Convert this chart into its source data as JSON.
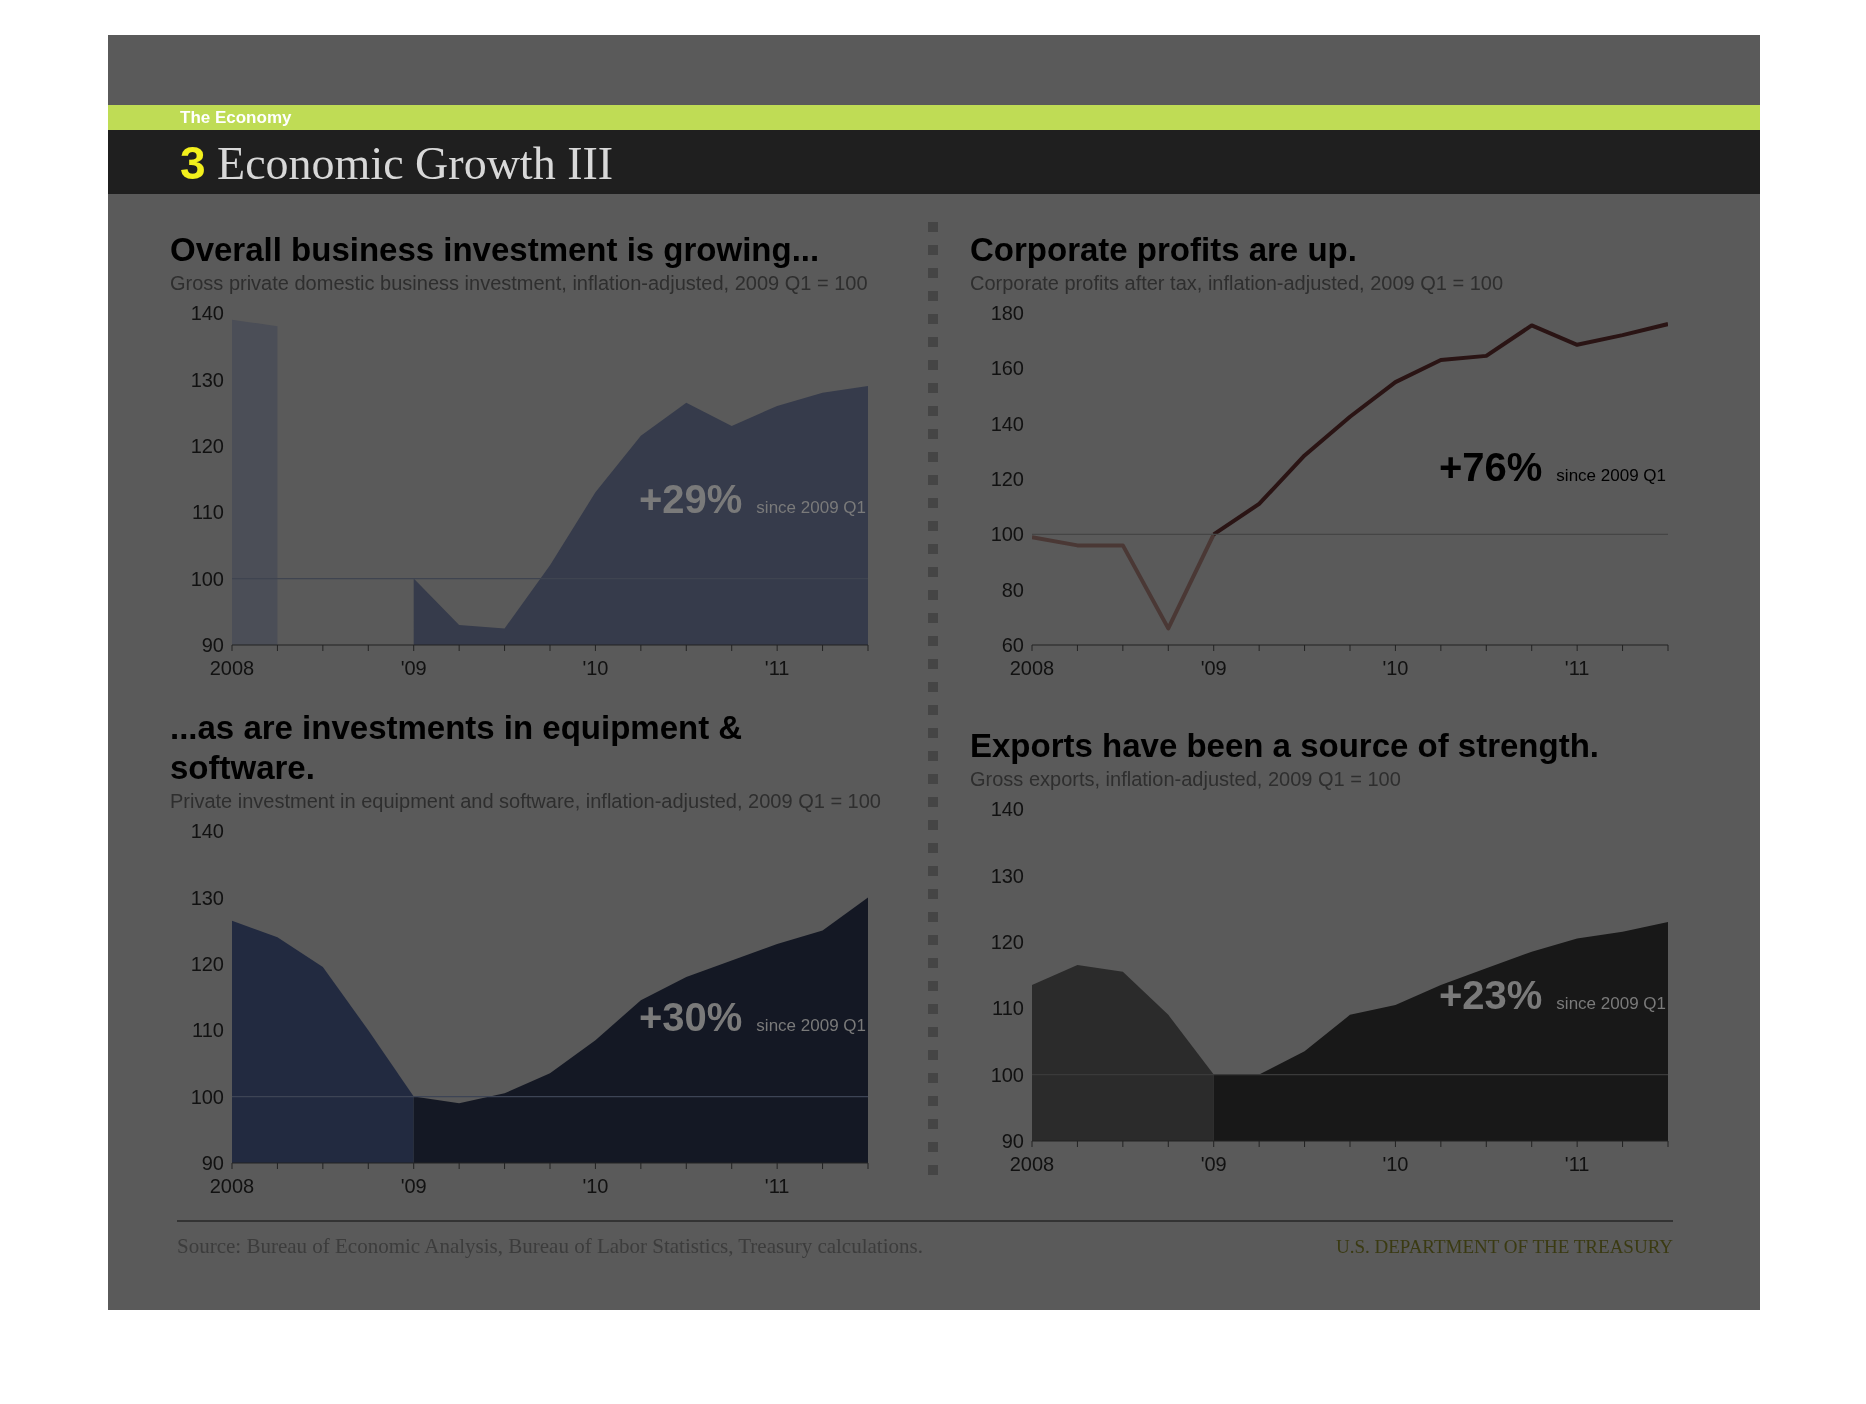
{
  "chart_data": [
    {
      "type": "other",
      "title": "3 Economic Growth III",
      "subtitle": "The Economy"
    },
    {
      "type": "area",
      "title": "Overall business investment is growing...",
      "subtitle": "Gross private domestic business investment, inflation-adjusted, 2009 Q1 = 100",
      "annotations": [
        "+29%",
        "since 2009 Q1"
      ],
      "xlim": [
        2008,
        2011.5
      ],
      "xticks": [
        {
          "value": 2008,
          "label": "2008"
        },
        {
          "value": 2008.25,
          "label": null
        },
        {
          "value": 2008.5,
          "label": null
        },
        {
          "value": 2008.75,
          "label": null
        },
        {
          "value": 2009,
          "label": "'09"
        },
        {
          "value": 2009.25,
          "label": null
        },
        {
          "value": 2009.5,
          "label": null
        },
        {
          "value": 2009.75,
          "label": null
        },
        {
          "value": 2010,
          "label": "'10"
        },
        {
          "value": 2010.25,
          "label": null
        },
        {
          "value": 2010.5,
          "label": null
        },
        {
          "value": 2010.75,
          "label": null
        },
        {
          "value": 2011,
          "label": "'11"
        },
        {
          "value": 2011.25,
          "label": null
        },
        {
          "value": 2011.5,
          "label": null
        }
      ],
      "ylim": [
        90,
        140
      ],
      "yticks": [
        90,
        100,
        110,
        120,
        130,
        140
      ],
      "ref_lines": [
        {
          "axis": "y",
          "value": 100,
          "color": "#3f4450"
        }
      ],
      "series": [
        {
          "color": "#4b4e57",
          "x": [
            2008,
            2008.25
          ],
          "values": [
            139,
            138
          ]
        },
        {
          "color": "#363b4b",
          "x": [
            2009,
            2009.25,
            2009.5,
            2009.75,
            2010,
            2010.25,
            2010.5,
            2010.75,
            2011,
            2011.25,
            2011.5
          ],
          "values": [
            100,
            93,
            92.5,
            102,
            113,
            121.5,
            126.5,
            123,
            126,
            128,
            129
          ]
        }
      ]
    },
    {
      "type": "line",
      "title": "Corporate profits are up.",
      "subtitle": "Corporate profits after tax, inflation-adjusted, 2009 Q1 = 100",
      "annotations": [
        "+76%",
        "since 2009 Q1"
      ],
      "xlim": [
        2008,
        2011.5
      ],
      "xticks": [
        {
          "value": 2008,
          "label": "2008"
        },
        {
          "value": 2008.25,
          "label": null
        },
        {
          "value": 2008.5,
          "label": null
        },
        {
          "value": 2008.75,
          "label": null
        },
        {
          "value": 2009,
          "label": "'09"
        },
        {
          "value": 2009.25,
          "label": null
        },
        {
          "value": 2009.5,
          "label": null
        },
        {
          "value": 2009.75,
          "label": null
        },
        {
          "value": 2010,
          "label": "'10"
        },
        {
          "value": 2010.25,
          "label": null
        },
        {
          "value": 2010.5,
          "label": null
        },
        {
          "value": 2010.75,
          "label": null
        },
        {
          "value": 2011,
          "label": "'11"
        },
        {
          "value": 2011.25,
          "label": null
        },
        {
          "value": 2011.5,
          "label": null
        }
      ],
      "ylim": [
        60,
        180
      ],
      "yticks": [
        60,
        80,
        100,
        120,
        140,
        160,
        180
      ],
      "ref_lines": [
        {
          "axis": "y",
          "value": 100,
          "color": "#454545"
        }
      ],
      "series": [
        {
          "color": "#4a3835",
          "x": [
            2008,
            2008.25,
            2008.5,
            2008.75,
            2009
          ],
          "values": [
            99,
            96,
            96,
            66,
            100
          ]
        },
        {
          "color": "#2a1414",
          "x": [
            2009,
            2009.25,
            2009.5,
            2009.75,
            2010,
            2010.25,
            2010.5,
            2010.75,
            2011,
            2011.25,
            2011.5
          ],
          "values": [
            100,
            111,
            128.5,
            142.5,
            155,
            163,
            164.5,
            175.5,
            168.5,
            172,
            176
          ]
        }
      ]
    },
    {
      "type": "area",
      "title": "...as are investments in equipment & software.",
      "subtitle": "Private investment in equipment and software, inflation-adjusted, 2009 Q1 = 100",
      "annotations": [
        "+30%",
        "since 2009 Q1"
      ],
      "xlim": [
        2008,
        2011.5
      ],
      "xticks": [
        {
          "value": 2008,
          "label": "2008"
        },
        {
          "value": 2008.25,
          "label": null
        },
        {
          "value": 2008.5,
          "label": null
        },
        {
          "value": 2008.75,
          "label": null
        },
        {
          "value": 2009,
          "label": "'09"
        },
        {
          "value": 2009.25,
          "label": null
        },
        {
          "value": 2009.5,
          "label": null
        },
        {
          "value": 2009.75,
          "label": null
        },
        {
          "value": 2010,
          "label": "'10"
        },
        {
          "value": 2010.25,
          "label": null
        },
        {
          "value": 2010.5,
          "label": null
        },
        {
          "value": 2010.75,
          "label": null
        },
        {
          "value": 2011,
          "label": "'11"
        },
        {
          "value": 2011.25,
          "label": null
        },
        {
          "value": 2011.5,
          "label": null
        }
      ],
      "ylim": [
        90,
        140
      ],
      "yticks": [
        90,
        100,
        110,
        120,
        130,
        140
      ],
      "ref_lines": [
        {
          "axis": "y",
          "value": 100,
          "color": "#3d4455"
        }
      ],
      "series": [
        {
          "color": "#222a40",
          "x": [
            2008,
            2008.25,
            2008.5,
            2008.75,
            2009
          ],
          "values": [
            126.5,
            124,
            119.5,
            110,
            100
          ]
        },
        {
          "color": "#141824",
          "x": [
            2009,
            2009.25,
            2009.5,
            2009.75,
            2010,
            2010.25,
            2010.5,
            2010.75,
            2011,
            2011.25,
            2011.5
          ],
          "values": [
            100,
            99,
            100.5,
            103.5,
            108.5,
            114.5,
            118,
            120.5,
            123,
            125,
            130
          ]
        }
      ]
    },
    {
      "type": "area",
      "title": "Exports have been a source of strength.",
      "subtitle": "Gross exports, inflation-adjusted, 2009 Q1 = 100",
      "annotations": [
        "+23%",
        "since 2009 Q1"
      ],
      "xlim": [
        2008,
        2011.5
      ],
      "xticks": [
        {
          "value": 2008,
          "label": "2008"
        },
        {
          "value": 2008.25,
          "label": null
        },
        {
          "value": 2008.5,
          "label": null
        },
        {
          "value": 2008.75,
          "label": null
        },
        {
          "value": 2009,
          "label": "'09"
        },
        {
          "value": 2009.25,
          "label": null
        },
        {
          "value": 2009.5,
          "label": null
        },
        {
          "value": 2009.75,
          "label": null
        },
        {
          "value": 2010,
          "label": "'10"
        },
        {
          "value": 2010.25,
          "label": null
        },
        {
          "value": 2010.5,
          "label": null
        },
        {
          "value": 2010.75,
          "label": null
        },
        {
          "value": 2011,
          "label": "'11"
        },
        {
          "value": 2011.25,
          "label": null
        },
        {
          "value": 2011.5,
          "label": null
        }
      ],
      "ylim": [
        90,
        140
      ],
      "yticks": [
        90,
        100,
        110,
        120,
        130,
        140
      ],
      "ref_lines": [
        {
          "axis": "y",
          "value": 100,
          "color": "#3a3a3a"
        }
      ],
      "series": [
        {
          "color": "#2b2b2b",
          "x": [
            2008,
            2008.25,
            2008.5,
            2008.75,
            2009
          ],
          "values": [
            113.5,
            116.5,
            115.5,
            109,
            100
          ]
        },
        {
          "color": "#181818",
          "x": [
            2009,
            2009.25,
            2009.5,
            2009.75,
            2010,
            2010.25,
            2010.5,
            2010.75,
            2011,
            2011.25,
            2011.5
          ],
          "values": [
            100,
            100,
            103.5,
            109,
            110.5,
            113.5,
            116,
            118.5,
            120.5,
            121.5,
            123
          ]
        }
      ]
    },
    {
      "type": "other",
      "annotations": [
        "Source: Bureau of Economic Analysis, Bureau of Labor Statistics, Treasury calculations.",
        "U.S. DEPARTMENT OF THE TREASURY"
      ]
    }
  ]
}
